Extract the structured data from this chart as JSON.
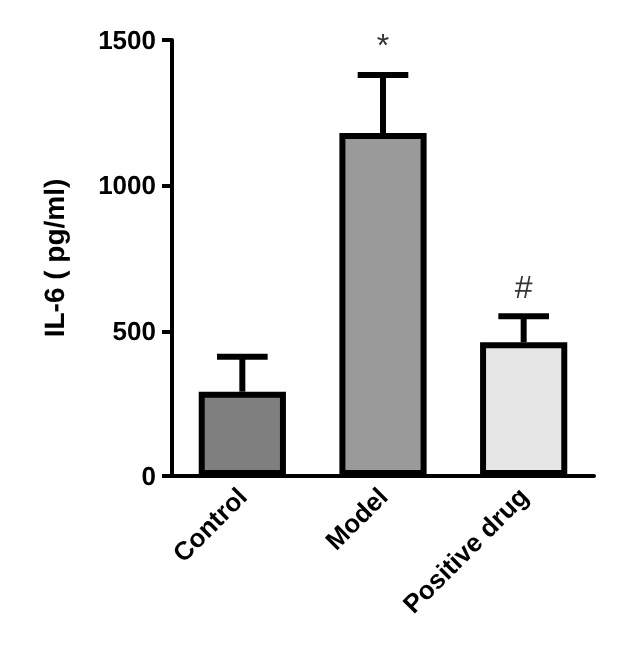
{
  "chart_data": {
    "type": "bar",
    "ylabel": "IL-6 ( pg/ml)",
    "categories": [
      "Control",
      "Model",
      "Positive drug"
    ],
    "values": [
      290,
      1180,
      460
    ],
    "colors": [
      "#7f7f7f",
      "#9a9a9a",
      "#e6e6e6"
    ],
    "errors": [
      [
        290,
        410
      ],
      [
        1180,
        1380
      ],
      [
        460,
        550
      ]
    ],
    "ylim": [
      0,
      1500
    ],
    "yticks": [
      0,
      500,
      1000,
      1500
    ],
    "grid": false,
    "annotations": [
      {
        "text": "*",
        "x": "Model",
        "y": 1420
      },
      {
        "text": "#",
        "x": "Positive drug",
        "y": 590
      }
    ]
  }
}
